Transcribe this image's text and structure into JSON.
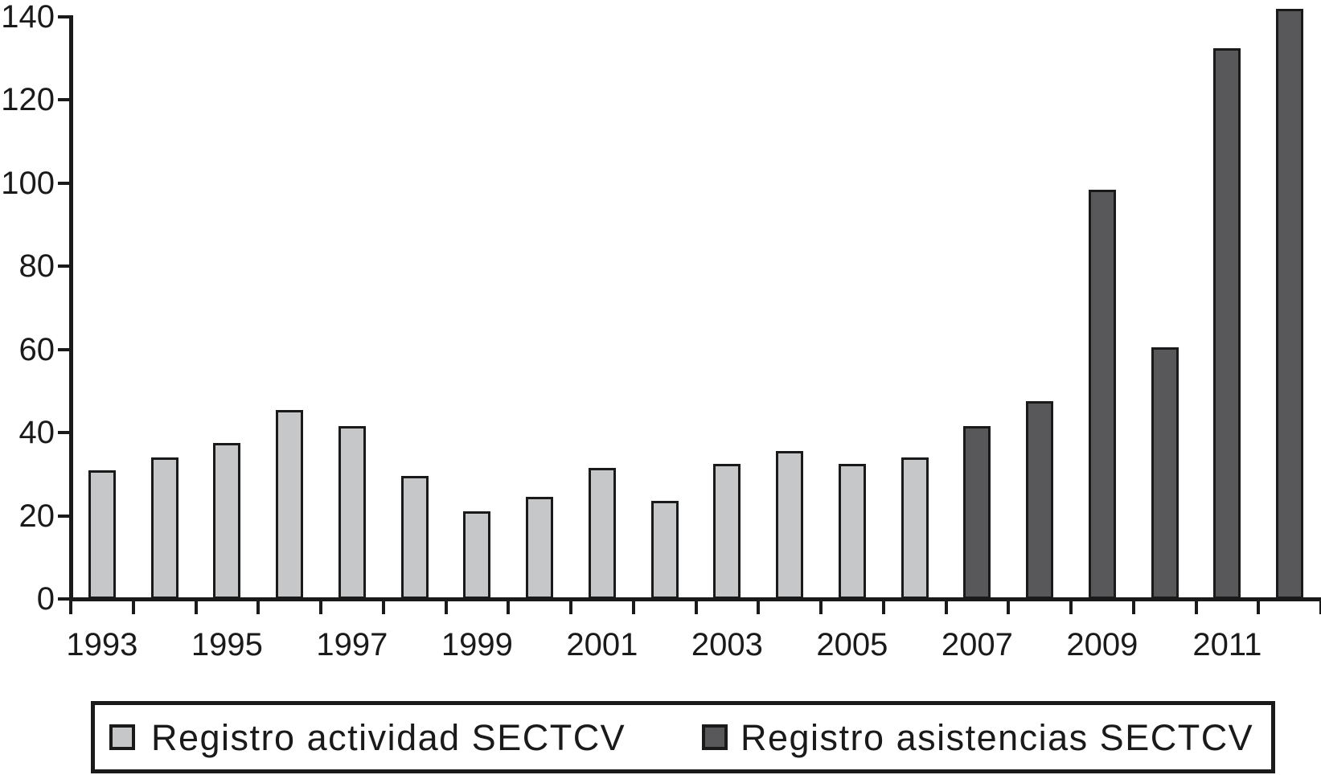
{
  "chart_data": {
    "type": "bar",
    "title": "",
    "xlabel": "",
    "ylabel": "",
    "categories": [
      "1993",
      "1994",
      "1995",
      "1996",
      "1997",
      "1998",
      "1999",
      "2000",
      "2001",
      "2002",
      "2003",
      "2004",
      "2005",
      "2006",
      "2007",
      "2008",
      "2009",
      "2010",
      "2011",
      "2012"
    ],
    "series": [
      {
        "name": "Registro actividad SECTCV",
        "color": "#c6c7c9",
        "values": [
          31,
          34,
          37.5,
          45.5,
          41.5,
          29.5,
          21,
          24.5,
          31.5,
          23.5,
          32.5,
          35.5,
          32.5,
          34,
          null,
          null,
          null,
          null,
          null,
          null
        ]
      },
      {
        "name": "Registro asistencias SECTCV",
        "color": "#58585a",
        "values": [
          null,
          null,
          null,
          null,
          null,
          null,
          null,
          null,
          null,
          null,
          null,
          null,
          null,
          null,
          41.5,
          47.5,
          98.5,
          60.5,
          132.5,
          142
        ]
      }
    ],
    "ylim": [
      0,
      140
    ],
    "yticks": [
      0,
      20,
      40,
      60,
      80,
      100,
      120,
      140
    ],
    "xtick_labels": [
      "1993",
      "1995",
      "1997",
      "1999",
      "2001",
      "2003",
      "2005",
      "2007",
      "2009",
      "2011"
    ],
    "xtick_label_positions": [
      0,
      2,
      4,
      6,
      8,
      10,
      12,
      14,
      16,
      18
    ],
    "bar_border_color": "#1a1a1a",
    "axis_color": "#1a1a1a",
    "grid": false,
    "legend_position": "bottom"
  },
  "legend": {
    "items": [
      {
        "label": "Registro actividad SECTCV",
        "color": "#c6c7c9"
      },
      {
        "label": "Registro asistencias SECTCV",
        "color": "#58585a"
      }
    ]
  }
}
